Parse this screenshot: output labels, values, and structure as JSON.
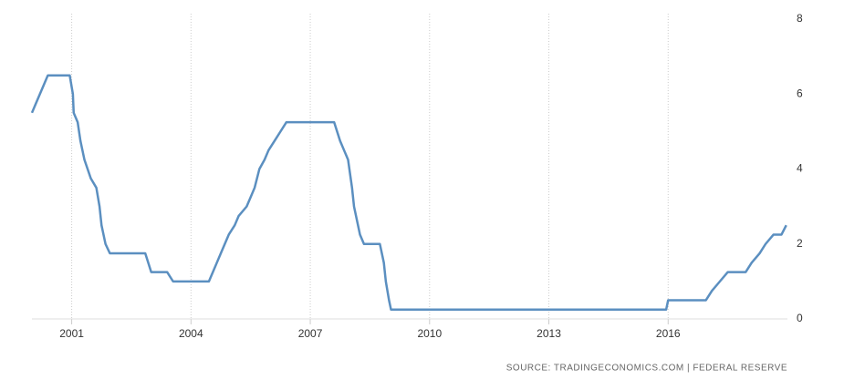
{
  "chart_data": {
    "type": "line",
    "source": "SOURCE: TRADINGECONOMICS.COM | FEDERAL RESERVE",
    "x": [
      2000.0,
      2000.1,
      2000.2,
      2000.3,
      2000.4,
      2000.95,
      2001.03,
      2001.05,
      2001.15,
      2001.22,
      2001.32,
      2001.4,
      2001.48,
      2001.62,
      2001.7,
      2001.75,
      2001.85,
      2001.96,
      2002.85,
      2003.0,
      2003.4,
      2003.55,
      2004.45,
      2004.55,
      2004.65,
      2004.75,
      2004.85,
      2004.95,
      2005.1,
      2005.2,
      2005.4,
      2005.5,
      2005.6,
      2005.72,
      2005.85,
      2005.95,
      2006.1,
      2006.25,
      2006.4,
      2007.6,
      2007.75,
      2007.85,
      2007.95,
      2008.05,
      2008.1,
      2008.25,
      2008.35,
      2008.75,
      2008.85,
      2008.9,
      2008.98,
      2009.03,
      2015.95,
      2016.0,
      2016.95,
      2017.1,
      2017.3,
      2017.5,
      2017.95,
      2018.1,
      2018.3,
      2018.45,
      2018.65,
      2018.85,
      2018.97
    ],
    "series": [
      {
        "color": "#5b8fc0",
        "values": [
          5.5,
          5.75,
          6.0,
          6.25,
          6.5,
          6.5,
          6.0,
          5.5,
          5.25,
          4.75,
          4.25,
          4.0,
          3.75,
          3.5,
          3.0,
          2.5,
          2.0,
          1.75,
          1.75,
          1.25,
          1.25,
          1.0,
          1.0,
          1.25,
          1.5,
          1.75,
          2.0,
          2.25,
          2.5,
          2.75,
          3.0,
          3.25,
          3.5,
          4.0,
          4.25,
          4.5,
          4.75,
          5.0,
          5.25,
          5.25,
          4.75,
          4.5,
          4.25,
          3.5,
          3.0,
          2.25,
          2.0,
          2.0,
          1.5,
          1.0,
          0.5,
          0.25,
          0.25,
          0.5,
          0.5,
          0.75,
          1.0,
          1.25,
          1.25,
          1.5,
          1.75,
          2.0,
          2.25,
          2.25,
          2.5
        ]
      }
    ],
    "xlim": [
      2000,
      2019
    ],
    "xticks": [
      2001,
      2004,
      2007,
      2010,
      2013,
      2016
    ],
    "ylim": [
      0,
      8
    ],
    "yticks": [
      0,
      2,
      4,
      6,
      8
    ],
    "grid": true
  }
}
